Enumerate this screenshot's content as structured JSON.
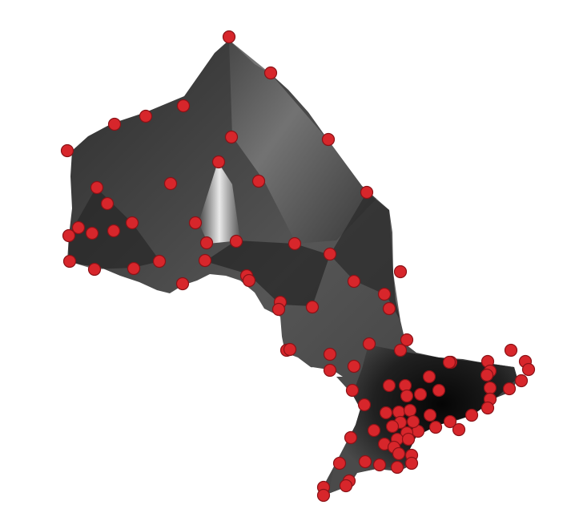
{
  "map": {
    "region_fill_colors": [
      "#1a1a1a",
      "#3a3a3a",
      "#5a5a5a",
      "#8a8a8a",
      "#e8e8e8"
    ],
    "marker_color": "#d7262b",
    "marker_outline": "#8a1217",
    "marker_icon": "circle-marker"
  }
}
